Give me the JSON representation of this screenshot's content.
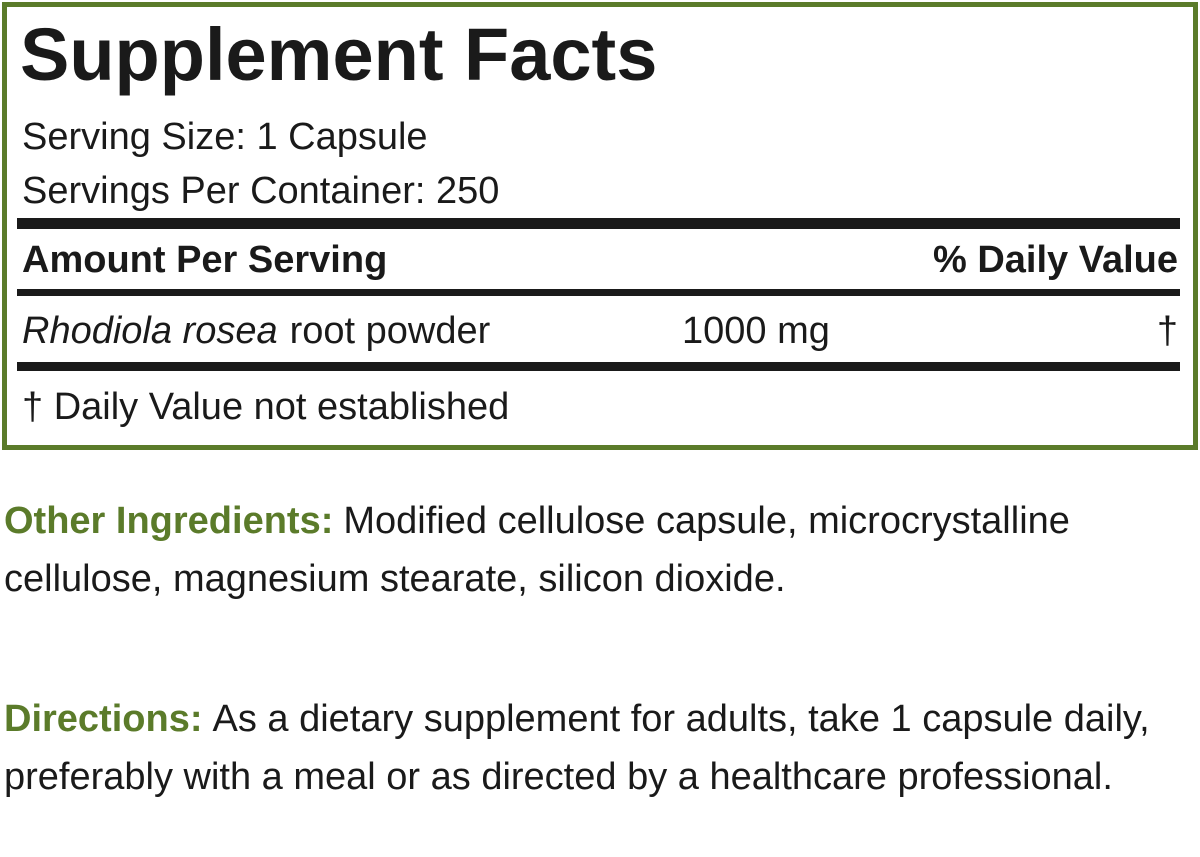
{
  "panel": {
    "title": "Supplement Facts",
    "serving_size": "Serving Size: 1 Capsule",
    "servings_per_container": "Servings Per Container: 250",
    "header_left": "Amount Per Serving",
    "header_right": "% Daily Value",
    "rows": [
      {
        "name_italic": "Rhodiola rosea",
        "name_rest": "root powder",
        "amount": "1000 mg",
        "dv": "†"
      }
    ],
    "footnote": "† Daily Value not established"
  },
  "other_ingredients": {
    "label": "Other Ingredients:",
    "text": "Modified cellulose capsule, microcrystalline cellulose, magnesium stearate, silicon dioxide."
  },
  "directions": {
    "label": "Directions:",
    "text": "As a dietary supplement for adults, take 1 capsule daily, preferably with a meal or as directed by a healthcare professional."
  }
}
